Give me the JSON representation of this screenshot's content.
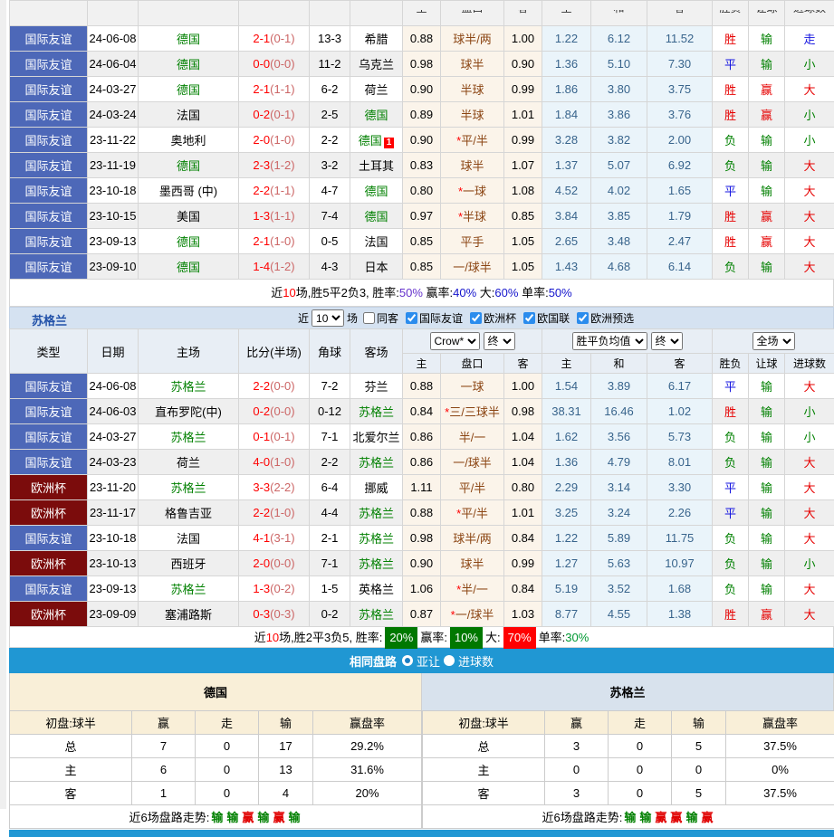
{
  "columns": {
    "main": [
      "类型",
      "日期",
      "主场",
      "比分(半场)",
      "角球",
      "客场"
    ],
    "sub": [
      "主",
      "盘口",
      "客",
      "主",
      "和",
      "客",
      "胜负",
      "让球",
      "进球数"
    ]
  },
  "germany": {
    "rows": [
      {
        "t": "国际友谊",
        "tc": "b",
        "d": "24-06-08",
        "h": "德国",
        "hg": 1,
        "s": "2-1",
        "sh": "(0-1)",
        "c": "13-3",
        "a": "希腊",
        "ag": 0,
        "o1": "0.88",
        "ok": "球半/两",
        "o2": "1.00",
        "e1": "1.22",
        "e2": "6.12",
        "e3": "11.52",
        "r1": "胜",
        "r2": "输",
        "r3": "走"
      },
      {
        "t": "国际友谊",
        "tc": "b",
        "d": "24-06-04",
        "h": "德国",
        "hg": 1,
        "s": "0-0",
        "sh": "(0-0)",
        "c": "11-2",
        "a": "乌克兰",
        "ag": 0,
        "o1": "0.98",
        "ok": "球半",
        "o2": "0.90",
        "e1": "1.36",
        "e2": "5.10",
        "e3": "7.30",
        "r1": "平",
        "r2": "输",
        "r3": "小"
      },
      {
        "t": "国际友谊",
        "tc": "b",
        "d": "24-03-27",
        "h": "德国",
        "hg": 1,
        "s": "2-1",
        "sh": "(1-1)",
        "c": "6-2",
        "a": "荷兰",
        "ag": 0,
        "o1": "0.90",
        "ok": "半球",
        "o2": "0.99",
        "e1": "1.86",
        "e2": "3.80",
        "e3": "3.75",
        "r1": "胜",
        "r2": "赢",
        "r3": "大"
      },
      {
        "t": "国际友谊",
        "tc": "b",
        "d": "24-03-24",
        "h": "法国",
        "hg": 0,
        "s": "0-2",
        "sh": "(0-1)",
        "c": "2-5",
        "a": "德国",
        "ag": 1,
        "o1": "0.89",
        "ok": "半球",
        "o2": "1.01",
        "e1": "1.84",
        "e2": "3.86",
        "e3": "3.76",
        "r1": "胜",
        "r2": "赢",
        "r3": "小"
      },
      {
        "t": "国际友谊",
        "tc": "b",
        "d": "23-11-22",
        "h": "奥地利",
        "hg": 0,
        "s": "2-0",
        "sh": "(1-0)",
        "c": "2-2",
        "a": "德国",
        "ag": 1,
        "ab": "1",
        "o1": "0.90",
        "ok": "*平/半",
        "o2": "0.99",
        "e1": "3.28",
        "e2": "3.82",
        "e3": "2.00",
        "r1": "负",
        "r2": "输",
        "r3": "小"
      },
      {
        "t": "国际友谊",
        "tc": "b",
        "d": "23-11-19",
        "h": "德国",
        "hg": 1,
        "s": "2-3",
        "sh": "(1-2)",
        "c": "3-2",
        "a": "土耳其",
        "ag": 0,
        "o1": "0.83",
        "ok": "球半",
        "o2": "1.07",
        "e1": "1.37",
        "e2": "5.07",
        "e3": "6.92",
        "r1": "负",
        "r2": "输",
        "r3": "大"
      },
      {
        "t": "国际友谊",
        "tc": "b",
        "d": "23-10-18",
        "h": "墨西哥 (中)",
        "hg": 0,
        "s": "2-2",
        "sh": "(1-1)",
        "c": "4-7",
        "a": "德国",
        "ag": 1,
        "o1": "0.80",
        "ok": "*一球",
        "o2": "1.08",
        "e1": "4.52",
        "e2": "4.02",
        "e3": "1.65",
        "r1": "平",
        "r2": "输",
        "r3": "大"
      },
      {
        "t": "国际友谊",
        "tc": "b",
        "d": "23-10-15",
        "h": "美国",
        "hg": 0,
        "s": "1-3",
        "sh": "(1-1)",
        "c": "7-4",
        "a": "德国",
        "ag": 1,
        "o1": "0.97",
        "ok": "*半球",
        "o2": "0.85",
        "e1": "3.84",
        "e2": "3.85",
        "e3": "1.79",
        "r1": "胜",
        "r2": "赢",
        "r3": "大"
      },
      {
        "t": "国际友谊",
        "tc": "b",
        "d": "23-09-13",
        "h": "德国",
        "hg": 1,
        "s": "2-1",
        "sh": "(1-0)",
        "c": "0-5",
        "a": "法国",
        "ag": 0,
        "o1": "0.85",
        "ok": "平手",
        "o2": "1.05",
        "e1": "2.65",
        "e2": "3.48",
        "e3": "2.47",
        "r1": "胜",
        "r2": "赢",
        "r3": "大"
      },
      {
        "t": "国际友谊",
        "tc": "b",
        "d": "23-09-10",
        "h": "德国",
        "hg": 1,
        "s": "1-4",
        "sh": "(1-2)",
        "c": "4-3",
        "a": "日本",
        "ag": 0,
        "o1": "0.85",
        "ok": "一/球半",
        "o2": "1.05",
        "e1": "1.43",
        "e2": "4.68",
        "e3": "6.14",
        "r1": "负",
        "r2": "输",
        "r3": "大"
      }
    ],
    "summary": [
      {
        "t": "近"
      },
      {
        "t": "10",
        "c": "r"
      },
      {
        "t": "场,胜5平2负3, 胜率:"
      },
      {
        "t": "50%",
        "c": "p"
      },
      {
        "t": " 赢率:"
      },
      {
        "t": "40%",
        "c": "b"
      },
      {
        "t": " 大:"
      },
      {
        "t": "60%",
        "c": "b"
      },
      {
        "t": " 单率:"
      },
      {
        "t": "50%",
        "c": "b"
      }
    ]
  },
  "scotland": {
    "title": "苏格兰",
    "filters": {
      "prefix": "近",
      "select_value": "10",
      "suffix": "场",
      "checkboxes": [
        {
          "label": "同客",
          "checked": false
        },
        {
          "label": "国际友谊",
          "checked": true
        },
        {
          "label": "欧洲杯",
          "checked": true
        },
        {
          "label": "欧国联",
          "checked": true
        },
        {
          "label": "欧洲预选",
          "checked": true
        }
      ]
    },
    "selects": {
      "group1": [
        "Crow*",
        "终"
      ],
      "group2": [
        "胜平负均值",
        "终"
      ],
      "group3": [
        "全场"
      ]
    },
    "rows": [
      {
        "t": "国际友谊",
        "tc": "b",
        "d": "24-06-08",
        "h": "苏格兰",
        "hg": 1,
        "s": "2-2",
        "sh": "(0-0)",
        "c": "7-2",
        "a": "芬兰",
        "ag": 0,
        "o1": "0.88",
        "ok": "一球",
        "o2": "1.00",
        "e1": "1.54",
        "e2": "3.89",
        "e3": "6.17",
        "r1": "平",
        "r2": "输",
        "r3": "大"
      },
      {
        "t": "国际友谊",
        "tc": "b",
        "d": "24-06-03",
        "h": "直布罗陀(中)",
        "hg": 0,
        "s": "0-2",
        "sh": "(0-0)",
        "c": "0-12",
        "a": "苏格兰",
        "ag": 1,
        "o1": "0.84",
        "ok": "*三/三球半",
        "o2": "0.98",
        "e1": "38.31",
        "e2": "16.46",
        "e3": "1.02",
        "r1": "胜",
        "r2": "输",
        "r3": "小"
      },
      {
        "t": "国际友谊",
        "tc": "b",
        "d": "24-03-27",
        "h": "苏格兰",
        "hg": 1,
        "s": "0-1",
        "sh": "(0-1)",
        "c": "7-1",
        "a": "北爱尔兰",
        "ag": 0,
        "o1": "0.86",
        "ok": "半/一",
        "o2": "1.04",
        "e1": "1.62",
        "e2": "3.56",
        "e3": "5.73",
        "r1": "负",
        "r2": "输",
        "r3": "小"
      },
      {
        "t": "国际友谊",
        "tc": "b",
        "d": "24-03-23",
        "h": "荷兰",
        "hg": 0,
        "s": "4-0",
        "sh": "(1-0)",
        "c": "2-2",
        "a": "苏格兰",
        "ag": 1,
        "o1": "0.86",
        "ok": "一/球半",
        "o2": "1.04",
        "e1": "1.36",
        "e2": "4.79",
        "e3": "8.01",
        "r1": "负",
        "r2": "输",
        "r3": "大"
      },
      {
        "t": "欧洲杯",
        "tc": "r",
        "d": "23-11-20",
        "h": "苏格兰",
        "hg": 1,
        "s": "3-3",
        "sh": "(2-2)",
        "c": "6-4",
        "a": "挪威",
        "ag": 0,
        "o1": "1.11",
        "ok": "平/半",
        "o2": "0.80",
        "e1": "2.29",
        "e2": "3.14",
        "e3": "3.30",
        "r1": "平",
        "r2": "输",
        "r3": "大"
      },
      {
        "t": "欧洲杯",
        "tc": "r",
        "d": "23-11-17",
        "h": "格鲁吉亚",
        "hg": 0,
        "s": "2-2",
        "sh": "(1-0)",
        "c": "4-4",
        "a": "苏格兰",
        "ag": 1,
        "o1": "0.88",
        "ok": "*平/半",
        "o2": "1.01",
        "e1": "3.25",
        "e2": "3.24",
        "e3": "2.26",
        "r1": "平",
        "r2": "输",
        "r3": "大"
      },
      {
        "t": "国际友谊",
        "tc": "b",
        "d": "23-10-18",
        "h": "法国",
        "hg": 0,
        "s": "4-1",
        "sh": "(3-1)",
        "c": "2-1",
        "a": "苏格兰",
        "ag": 1,
        "o1": "0.98",
        "ok": "球半/两",
        "o2": "0.84",
        "e1": "1.22",
        "e2": "5.89",
        "e3": "11.75",
        "r1": "负",
        "r2": "输",
        "r3": "大"
      },
      {
        "t": "欧洲杯",
        "tc": "r",
        "d": "23-10-13",
        "h": "西班牙",
        "hg": 0,
        "s": "2-0",
        "sh": "(0-0)",
        "c": "7-1",
        "a": "苏格兰",
        "ag": 1,
        "o1": "0.90",
        "ok": "球半",
        "o2": "0.99",
        "e1": "1.27",
        "e2": "5.63",
        "e3": "10.97",
        "r1": "负",
        "r2": "输",
        "r3": "小"
      },
      {
        "t": "国际友谊",
        "tc": "b",
        "d": "23-09-13",
        "h": "苏格兰",
        "hg": 1,
        "s": "1-3",
        "sh": "(0-2)",
        "c": "1-5",
        "a": "英格兰",
        "ag": 0,
        "o1": "1.06",
        "ok": "*半/一",
        "o2": "0.84",
        "e1": "5.19",
        "e2": "3.52",
        "e3": "1.68",
        "r1": "负",
        "r2": "输",
        "r3": "大"
      },
      {
        "t": "欧洲杯",
        "tc": "r",
        "d": "23-09-09",
        "h": "塞浦路斯",
        "hg": 0,
        "s": "0-3",
        "sh": "(0-3)",
        "c": "0-2",
        "a": "苏格兰",
        "ag": 1,
        "o1": "0.87",
        "ok": "*一/球半",
        "o2": "1.03",
        "e1": "8.77",
        "e2": "4.55",
        "e3": "1.38",
        "r1": "胜",
        "r2": "赢",
        "r3": "大"
      }
    ],
    "summary": [
      {
        "t": "近"
      },
      {
        "t": "10",
        "c": "r"
      },
      {
        "t": "场,胜2平3负5, 胜率:"
      },
      {
        "t": "20%",
        "c": "bg"
      },
      {
        "t": "赢率:"
      },
      {
        "t": "10%",
        "c": "bg"
      },
      {
        "t": "大:"
      },
      {
        "t": "70%",
        "c": "br"
      },
      {
        "t": "单率:"
      },
      {
        "t": "30%",
        "c": "g"
      }
    ]
  },
  "compare": {
    "title": "相同盘路",
    "radio1": "亚让",
    "radio2": "进球数",
    "left": {
      "team": "德国",
      "init": "初盘:球半",
      "cols": [
        "赢",
        "走",
        "输",
        "赢盘率"
      ],
      "rows": [
        [
          "总",
          "7",
          "0",
          "17",
          "29.2%"
        ],
        [
          "主",
          "6",
          "0",
          "13",
          "31.6%"
        ],
        [
          "客",
          "1",
          "0",
          "4",
          "20%"
        ]
      ],
      "trend_label": "近6场盘路走势:",
      "trend": [
        {
          "t": "输",
          "c": "g"
        },
        {
          "t": "输",
          "c": "g"
        },
        {
          "t": "赢",
          "c": "r"
        },
        {
          "t": "输",
          "c": "g"
        },
        {
          "t": "赢",
          "c": "r"
        },
        {
          "t": "输",
          "c": "g"
        }
      ]
    },
    "right": {
      "team": "苏格兰",
      "init": "初盘:球半",
      "cols": [
        "赢",
        "走",
        "输",
        "赢盘率"
      ],
      "rows": [
        [
          "总",
          "3",
          "0",
          "5",
          "37.5%"
        ],
        [
          "主",
          "0",
          "0",
          "0",
          "0%"
        ],
        [
          "客",
          "3",
          "0",
          "5",
          "37.5%"
        ]
      ],
      "trend_label": "近6场盘路走势:",
      "trend": [
        {
          "t": "输",
          "c": "g"
        },
        {
          "t": "输",
          "c": "g"
        },
        {
          "t": "赢",
          "c": "r"
        },
        {
          "t": "赢",
          "c": "r"
        },
        {
          "t": "输",
          "c": "g"
        },
        {
          "t": "赢",
          "c": "r"
        }
      ]
    }
  },
  "colors": {
    "type_blue": "#4d68b8",
    "type_red": "#7b0c0c",
    "section_blue": "#2097d3",
    "win_red": "#e60000",
    "lose_green": "#008000",
    "draw_blue": "#1414e0"
  }
}
